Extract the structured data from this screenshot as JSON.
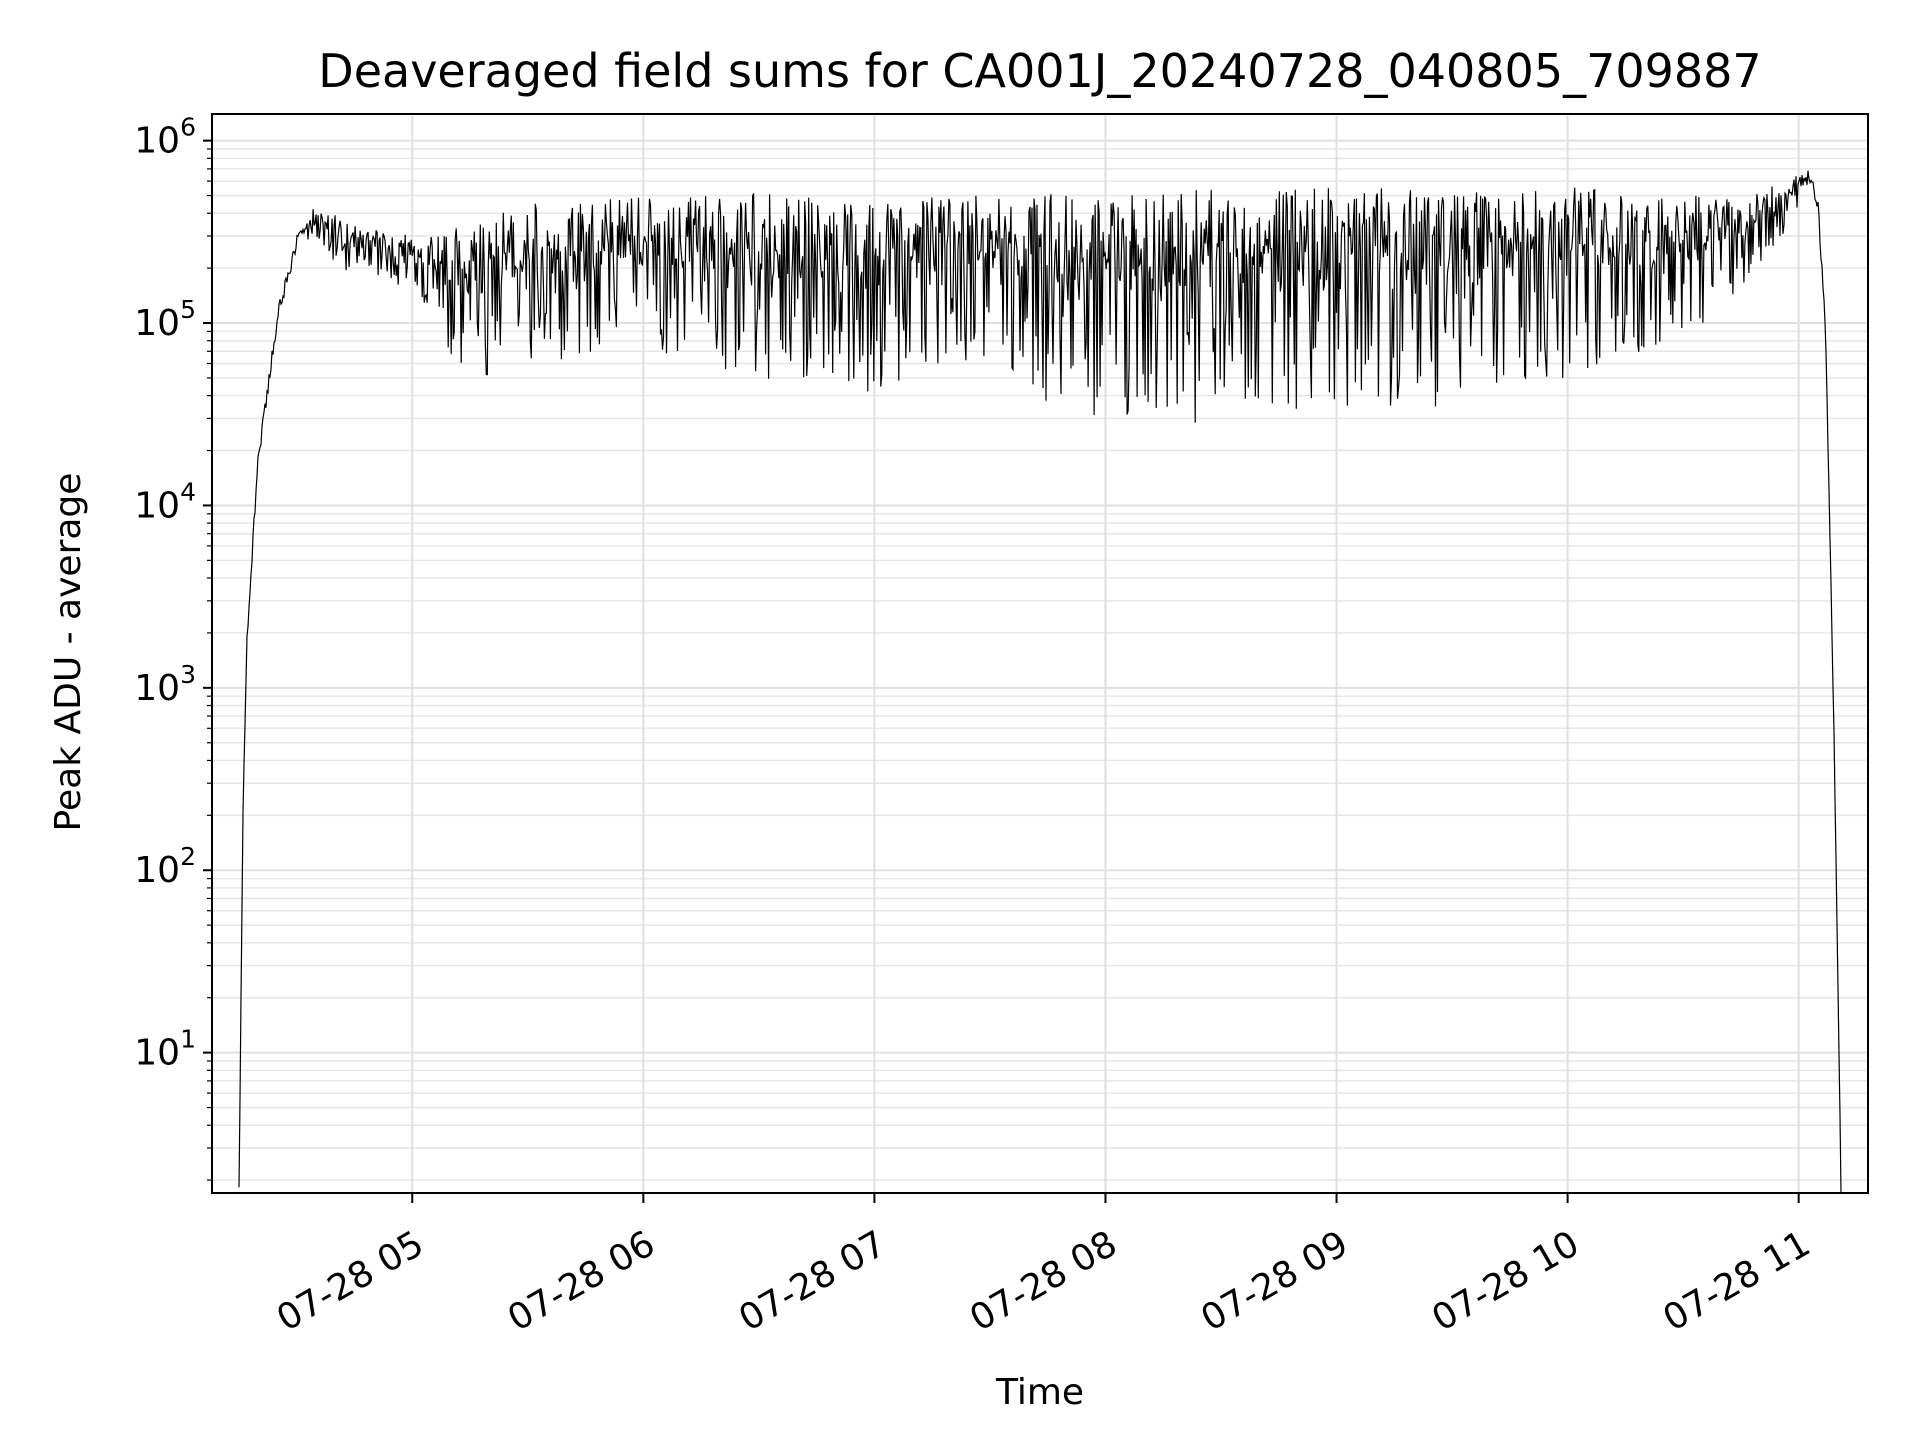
{
  "chart_data": {
    "type": "line",
    "title": "Deaveraged field sums for CA001J_20240728_040805_709887",
    "xlabel": "Time",
    "ylabel": "Peak ADU - average",
    "yscale": "log",
    "ylim": [
      1.7,
      1400000
    ],
    "xlim": [
      "2024-07-28 04:08",
      "2024-07-28 11:18"
    ],
    "grid": true,
    "grid_minor": true,
    "line_color": "#000000",
    "xticks": [
      {
        "t": "2024-07-28 05:00",
        "label": "07-28 05"
      },
      {
        "t": "2024-07-28 06:00",
        "label": "07-28 06"
      },
      {
        "t": "2024-07-28 07:00",
        "label": "07-28 07"
      },
      {
        "t": "2024-07-28 08:00",
        "label": "07-28 08"
      },
      {
        "t": "2024-07-28 09:00",
        "label": "07-28 09"
      },
      {
        "t": "2024-07-28 10:00",
        "label": "07-28 10"
      },
      {
        "t": "2024-07-28 11:00",
        "label": "07-28 11"
      }
    ],
    "yticks": [
      {
        "value": 10,
        "base": "10",
        "exp": "1"
      },
      {
        "value": 100,
        "base": "10",
        "exp": "2"
      },
      {
        "value": 1000,
        "base": "10",
        "exp": "3"
      },
      {
        "value": 10000,
        "base": "10",
        "exp": "4"
      },
      {
        "value": 100000,
        "base": "10",
        "exp": "5"
      },
      {
        "value": 1000000,
        "base": "10",
        "exp": "6"
      }
    ],
    "series": [
      {
        "x_note": "envelope of a dense noisy trace",
        "upper": {
          "x": [
            "2024-07-28 04:15",
            "2024-07-28 04:16",
            "2024-07-28 04:17",
            "2024-07-28 04:20",
            "2024-07-28 04:25",
            "2024-07-28 04:30",
            "2024-07-28 04:35",
            "2024-07-28 04:45",
            "2024-07-28 05:00",
            "2024-07-28 05:15",
            "2024-07-28 05:30",
            "2024-07-28 06:00",
            "2024-07-28 06:30",
            "2024-07-28 07:00",
            "2024-07-28 07:30",
            "2024-07-28 08:00",
            "2024-07-28 08:30",
            "2024-07-28 09:00",
            "2024-07-28 09:30",
            "2024-07-28 10:00",
            "2024-07-28 10:30",
            "2024-07-28 10:45",
            "2024-07-28 11:00",
            "2024-07-28 11:03",
            "2024-07-28 11:05",
            "2024-07-28 11:07",
            "2024-07-28 11:08",
            "2024-07-28 11:09",
            "2024-07-28 11:10",
            "2024-07-28 11:11"
          ],
          "y": [
            2,
            200,
            2000,
            20000,
            120000,
            300000,
            450000,
            350000,
            300000,
            350000,
            450000,
            500000,
            520000,
            450000,
            550000,
            550000,
            560000,
            550000,
            550000,
            560000,
            500000,
            500000,
            650000,
            700000,
            500000,
            100000,
            10000,
            1000,
            50,
            2
          ]
        },
        "lower": {
          "x": [
            "2024-07-28 04:30",
            "2024-07-28 04:45",
            "2024-07-28 05:00",
            "2024-07-28 05:15",
            "2024-07-28 05:30",
            "2024-07-28 06:00",
            "2024-07-28 06:30",
            "2024-07-28 07:00",
            "2024-07-28 07:30",
            "2024-07-28 07:45",
            "2024-07-28 08:00",
            "2024-07-28 08:30",
            "2024-07-28 09:00",
            "2024-07-28 09:30",
            "2024-07-28 10:00",
            "2024-07-28 10:30",
            "2024-07-28 10:45",
            "2024-07-28 11:00"
          ],
          "y": [
            300000,
            180000,
            150000,
            45000,
            60000,
            70000,
            50000,
            40000,
            60000,
            35000,
            30000,
            28000,
            30000,
            35000,
            50000,
            80000,
            150000,
            400000
          ]
        }
      }
    ]
  }
}
